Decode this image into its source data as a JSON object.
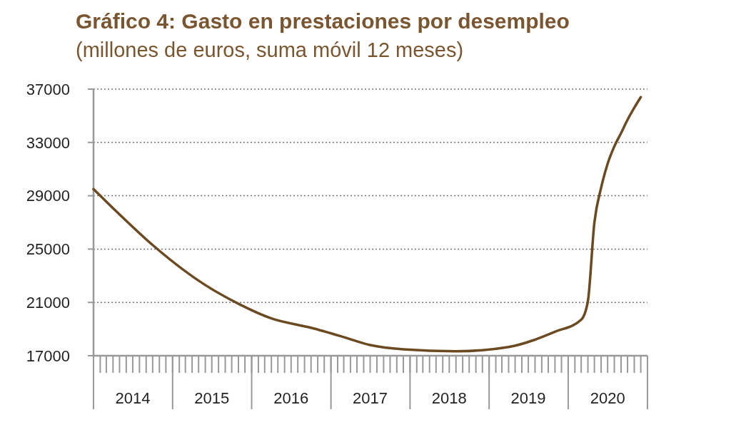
{
  "chart_data": {
    "type": "line",
    "title": "Gráfico 4: Gasto en prestaciones por desempleo",
    "subtitle": "(millones de euros, suma móvil 12 meses)",
    "x": [
      "2014-01",
      "2014-05",
      "2014-10",
      "2015-06",
      "2015-11",
      "2016-04",
      "2016-10",
      "2017-03",
      "2017-07",
      "2017-12",
      "2018-08",
      "2019-04",
      "2019-11",
      "2020-03",
      "2020-04",
      "2020-05",
      "2020-06",
      "2020-07",
      "2020-08",
      "2020-09",
      "2020-10",
      "2020-11",
      "2020-12"
    ],
    "series": [
      {
        "color": "#6b4a22",
        "values": [
          29500,
          27600,
          25300,
          22300,
          20900,
          19800,
          19100,
          18400,
          17800,
          17480,
          17340,
          17660,
          18800,
          19700,
          21100,
          27000,
          29600,
          31400,
          32700,
          33700,
          34700,
          35600,
          36400
        ]
      }
    ],
    "xlim": [
      "2014-01-01",
      "2021-01-01"
    ],
    "xticks": [
      {
        "value": "2014-07-01",
        "label": "2014"
      },
      {
        "value": "2015-07-01",
        "label": "2015"
      },
      {
        "value": "2016-07-01",
        "label": "2016"
      },
      {
        "value": "2017-07-01",
        "label": "2017"
      },
      {
        "value": "2018-07-01",
        "label": "2018"
      },
      {
        "value": "2019-07-01",
        "label": "2019"
      },
      {
        "value": "2020-07-01",
        "label": "2020"
      }
    ],
    "ylim": [
      17000,
      37000
    ],
    "yticks": [
      17000,
      21000,
      25000,
      29000,
      33000,
      37000
    ],
    "grid": "y",
    "marker": "none",
    "line_style": "solid"
  }
}
